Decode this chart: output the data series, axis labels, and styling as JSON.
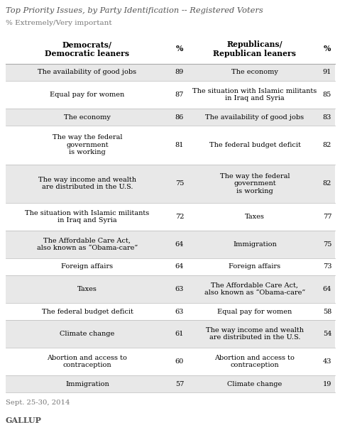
{
  "title": "Top Priority Issues, by Party Identification -- Registered Voters",
  "subtitle": "% Extremely/Very important",
  "rows": [
    {
      "dem_issue": "The availability of good jobs",
      "dem_pct": "89",
      "rep_issue": "The economy",
      "rep_pct": "91",
      "shaded": true
    },
    {
      "dem_issue": "Equal pay for women",
      "dem_pct": "87",
      "rep_issue": "The situation with Islamic militants\nin Iraq and Syria",
      "rep_pct": "85",
      "shaded": false
    },
    {
      "dem_issue": "The economy",
      "dem_pct": "86",
      "rep_issue": "The availability of good jobs",
      "rep_pct": "83",
      "shaded": true
    },
    {
      "dem_issue": "The way the federal\ngovernment\nis working",
      "dem_pct": "81",
      "rep_issue": "The federal budget deficit",
      "rep_pct": "82",
      "shaded": false
    },
    {
      "dem_issue": "The way income and wealth\nare distributed in the U.S.",
      "dem_pct": "75",
      "rep_issue": "The way the federal\ngovernment\nis working",
      "rep_pct": "82",
      "shaded": true
    },
    {
      "dem_issue": "The situation with Islamic militants\nin Iraq and Syria",
      "dem_pct": "72",
      "rep_issue": "Taxes",
      "rep_pct": "77",
      "shaded": false
    },
    {
      "dem_issue": "The Affordable Care Act,\nalso known as “Obama-care”",
      "dem_pct": "64",
      "rep_issue": "Immigration",
      "rep_pct": "75",
      "shaded": true
    },
    {
      "dem_issue": "Foreign affairs",
      "dem_pct": "64",
      "rep_issue": "Foreign affairs",
      "rep_pct": "73",
      "shaded": false
    },
    {
      "dem_issue": "Taxes",
      "dem_pct": "63",
      "rep_issue": "The Affordable Care Act,\nalso known as “Obama-care”",
      "rep_pct": "64",
      "shaded": true
    },
    {
      "dem_issue": "The federal budget deficit",
      "dem_pct": "63",
      "rep_issue": "Equal pay for women",
      "rep_pct": "58",
      "shaded": false
    },
    {
      "dem_issue": "Climate change",
      "dem_pct": "61",
      "rep_issue": "The way income and wealth\nare distributed in the U.S.",
      "rep_pct": "54",
      "shaded": true
    },
    {
      "dem_issue": "Abortion and access to\ncontraception",
      "dem_pct": "60",
      "rep_issue": "Abortion and access to\ncontraception",
      "rep_pct": "43",
      "shaded": false
    },
    {
      "dem_issue": "Immigration",
      "dem_pct": "57",
      "rep_issue": "Climate change",
      "rep_pct": "19",
      "shaded": true
    }
  ],
  "footer": "Sept. 25-30, 2014",
  "source": "GALLUP",
  "bg_color": "#ffffff",
  "shaded_color": "#e8e8e8",
  "text_color": "#000000",
  "title_color": "#555555"
}
